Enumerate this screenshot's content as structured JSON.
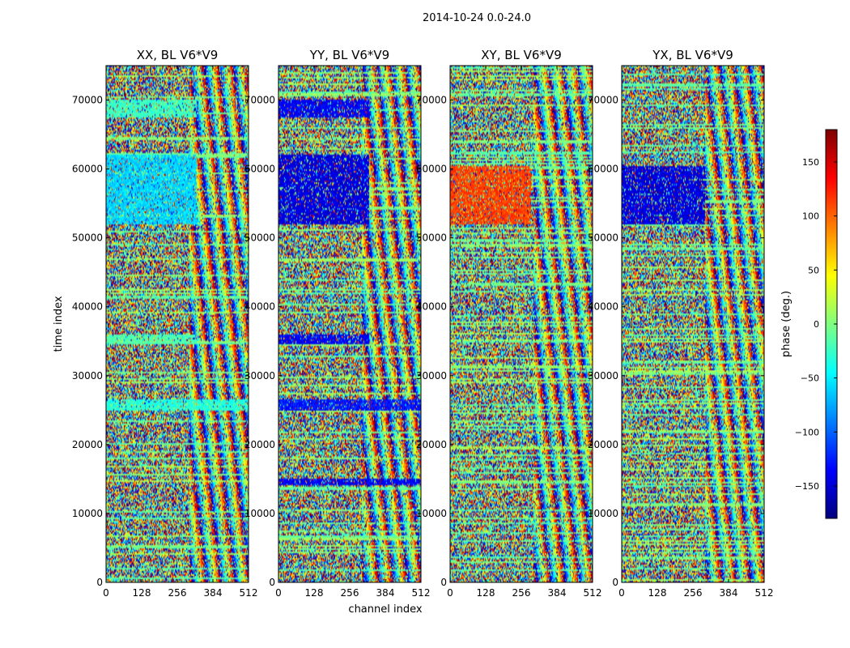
{
  "figure": {
    "suptitle": "2014-10-24 0.0-24.0",
    "xlabel": "channel index",
    "ylabel": "time index"
  },
  "colorbar": {
    "label": "phase (deg.)",
    "range": [
      -180,
      180
    ],
    "ticks": [
      150,
      100,
      50,
      0,
      -50,
      -100,
      -150
    ],
    "tick_labels": [
      "150",
      "100",
      "50",
      "0",
      "−50",
      "−100",
      "−150"
    ],
    "colormap": "jet",
    "colors": [
      "#00007f",
      "#0000ff",
      "#007fff",
      "#00ffff",
      "#7fff7f",
      "#ffff00",
      "#ff7f00",
      "#ff0000",
      "#7f0000"
    ]
  },
  "chart_data": [
    {
      "type": "heatmap",
      "title": "XX, BL V6*V9",
      "x_range": [
        0,
        512
      ],
      "y_range": [
        0,
        75000
      ],
      "x_ticks": [
        0,
        128,
        256,
        384,
        512
      ],
      "y_ticks": [
        0,
        10000,
        20000,
        30000,
        40000,
        50000,
        60000,
        70000
      ],
      "value_range": [
        -180,
        180
      ],
      "features": [
        {
          "t0": 52000,
          "t1": 62000,
          "c0": 0,
          "c1": 325,
          "phase": -70
        },
        {
          "t0": 67500,
          "t1": 70000,
          "c0": 0,
          "c1": 325,
          "phase": -30
        },
        {
          "t0": 34500,
          "t1": 36000,
          "c0": 0,
          "c1": 325,
          "phase": -20
        },
        {
          "t0": 25000,
          "t1": 26500,
          "c0": 0,
          "c1": 512,
          "phase": -40
        }
      ]
    },
    {
      "type": "heatmap",
      "title": "YY, BL V6*V9",
      "x_range": [
        0,
        512
      ],
      "y_range": [
        0,
        75000
      ],
      "x_ticks": [
        0,
        128,
        256,
        384,
        512
      ],
      "y_ticks": [
        0,
        10000,
        20000,
        30000,
        40000,
        50000,
        60000,
        70000
      ],
      "value_range": [
        -180,
        180
      ],
      "features": [
        {
          "t0": 52000,
          "t1": 62000,
          "c0": 0,
          "c1": 325,
          "phase": -150
        },
        {
          "t0": 67500,
          "t1": 70000,
          "c0": 0,
          "c1": 325,
          "phase": -140
        },
        {
          "t0": 34500,
          "t1": 36000,
          "c0": 0,
          "c1": 325,
          "phase": -140
        },
        {
          "t0": 25000,
          "t1": 26500,
          "c0": 0,
          "c1": 512,
          "phase": -130
        },
        {
          "t0": 14000,
          "t1": 15000,
          "c0": 0,
          "c1": 512,
          "phase": -140
        }
      ]
    },
    {
      "type": "heatmap",
      "title": "XY, BL V6*V9",
      "x_range": [
        0,
        512
      ],
      "y_range": [
        0,
        75000
      ],
      "x_ticks": [
        0,
        128,
        256,
        384,
        512
      ],
      "y_ticks": [
        0,
        10000,
        20000,
        30000,
        40000,
        50000,
        60000,
        70000
      ],
      "value_range": [
        -180,
        180
      ],
      "features": [
        {
          "t0": 52000,
          "t1": 60500,
          "c0": 0,
          "c1": 290,
          "phase": 120
        }
      ]
    },
    {
      "type": "heatmap",
      "title": "YX, BL V6*V9",
      "x_range": [
        0,
        512
      ],
      "y_range": [
        0,
        75000
      ],
      "x_ticks": [
        0,
        128,
        256,
        384,
        512
      ],
      "y_ticks": [
        0,
        10000,
        20000,
        30000,
        40000,
        50000,
        60000,
        70000
      ],
      "value_range": [
        -180,
        180
      ],
      "features": [
        {
          "t0": 52000,
          "t1": 60500,
          "c0": 0,
          "c1": 300,
          "phase": -150
        }
      ]
    }
  ]
}
